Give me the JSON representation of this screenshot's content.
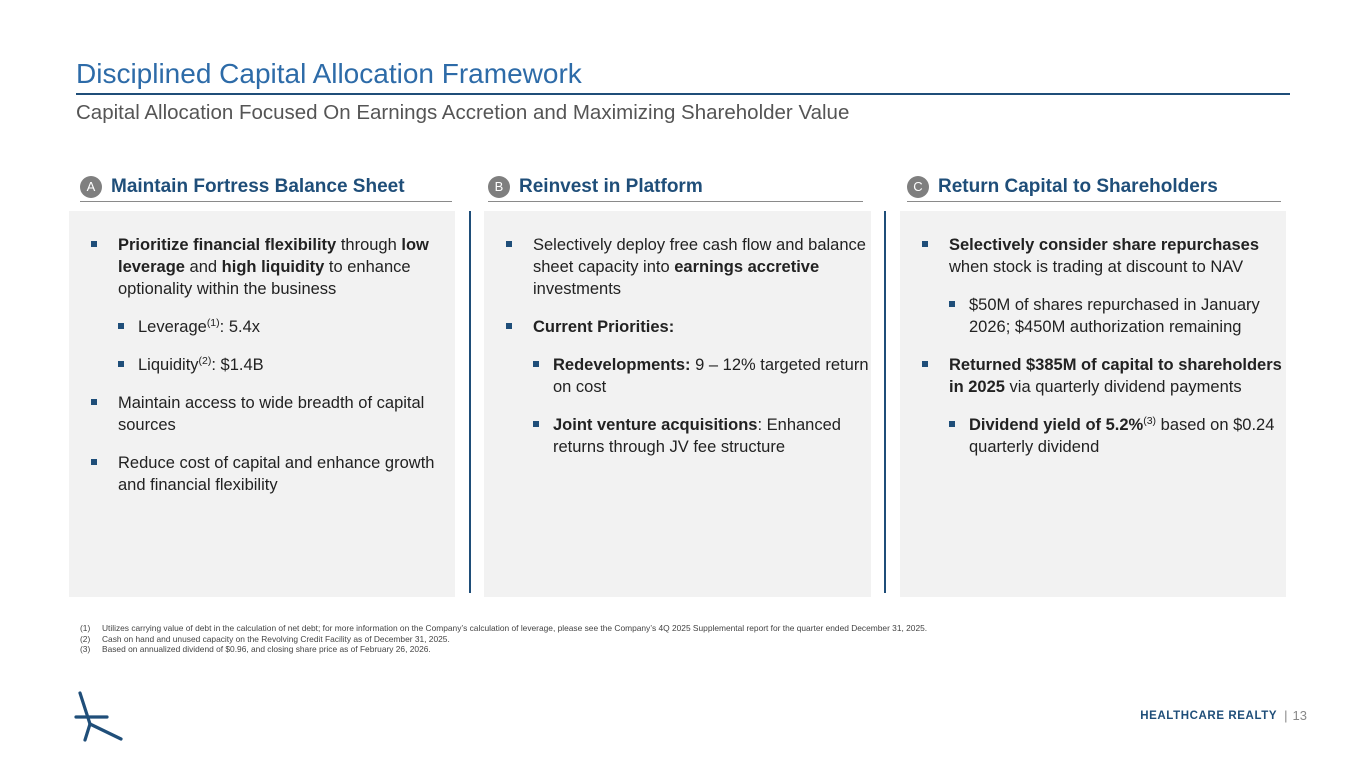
{
  "title": "Disciplined Capital Allocation Framework",
  "subtitle": "Capital Allocation Focused On Earnings Accretion and Maximizing Shareholder Value",
  "columns": [
    {
      "badge": "A",
      "heading": "Maintain Fortress Balance Sheet",
      "items": [
        {
          "b_prioritize": "Prioritize financial flexibility",
          "t1": " through ",
          "b_leverage": "low leverage",
          "t2": " and ",
          "b_liquidity": "high liquidity",
          "t3": " to enhance optionality within the business"
        },
        {
          "label": "Leverage",
          "sup": "(1)",
          "value": ": 5.4x"
        },
        {
          "label": "Liquidity",
          "sup": "(2)",
          "value": ": $1.4B"
        },
        {
          "text": "Maintain access to wide breadth of capital sources"
        },
        {
          "text": "Reduce cost of capital and enhance growth and financial flexibility"
        }
      ]
    },
    {
      "badge": "B",
      "heading": "Reinvest in Platform",
      "items": [
        {
          "t1": "Selectively deploy free cash flow and balance sheet capacity into ",
          "bold": "earnings accretive",
          "t2": " investments"
        },
        {
          "bold": "Current Priorities:"
        },
        {
          "bold": "Redevelopments:",
          "text": " 9 – 12% targeted return on cost"
        },
        {
          "bold": "Joint venture acquisitions",
          "text": ": Enhanced returns through JV fee structure"
        }
      ]
    },
    {
      "badge": "C",
      "heading": "Return Capital to Shareholders",
      "items": [
        {
          "bold": "Selectively consider share repurchases",
          "text": " when stock is trading at discount to NAV"
        },
        {
          "text": "$50M of shares repurchased in January 2026; $450M authorization remaining"
        },
        {
          "bold": "Returned $385M of capital to shareholders in 2025",
          "text": " via quarterly dividend payments"
        },
        {
          "bold": "Dividend yield of 5.2%",
          "sup": "(3)",
          "text": " based on $0.24 quarterly dividend"
        }
      ]
    }
  ],
  "footnotes": [
    {
      "num": "(1)",
      "text": "Utilizes carrying value of debt in the calculation of net debt; for more information on the Company’s calculation of leverage, please see the Company’s 4Q 2025 Supplemental report for the quarter ended December 31, 2025."
    },
    {
      "num": "(2)",
      "text": "Cash on hand and unused capacity on the Revolving Credit Facility as of December 31, 2025."
    },
    {
      "num": "(3)",
      "text": "Based on annualized dividend of $0.96, and closing share price as of February 26, 2026."
    }
  ],
  "footer": {
    "brand": "HEALTHCARE REALTY",
    "separator": "|",
    "page": "13"
  },
  "colors": {
    "title": "#2d6ba8",
    "navy": "#1f4e79",
    "panel_bg": "#f2f2f2",
    "badge": "#7f7f7f"
  },
  "icons": {
    "logo": "healthcare-realty-star-logo",
    "bullet": "square-bullet"
  }
}
